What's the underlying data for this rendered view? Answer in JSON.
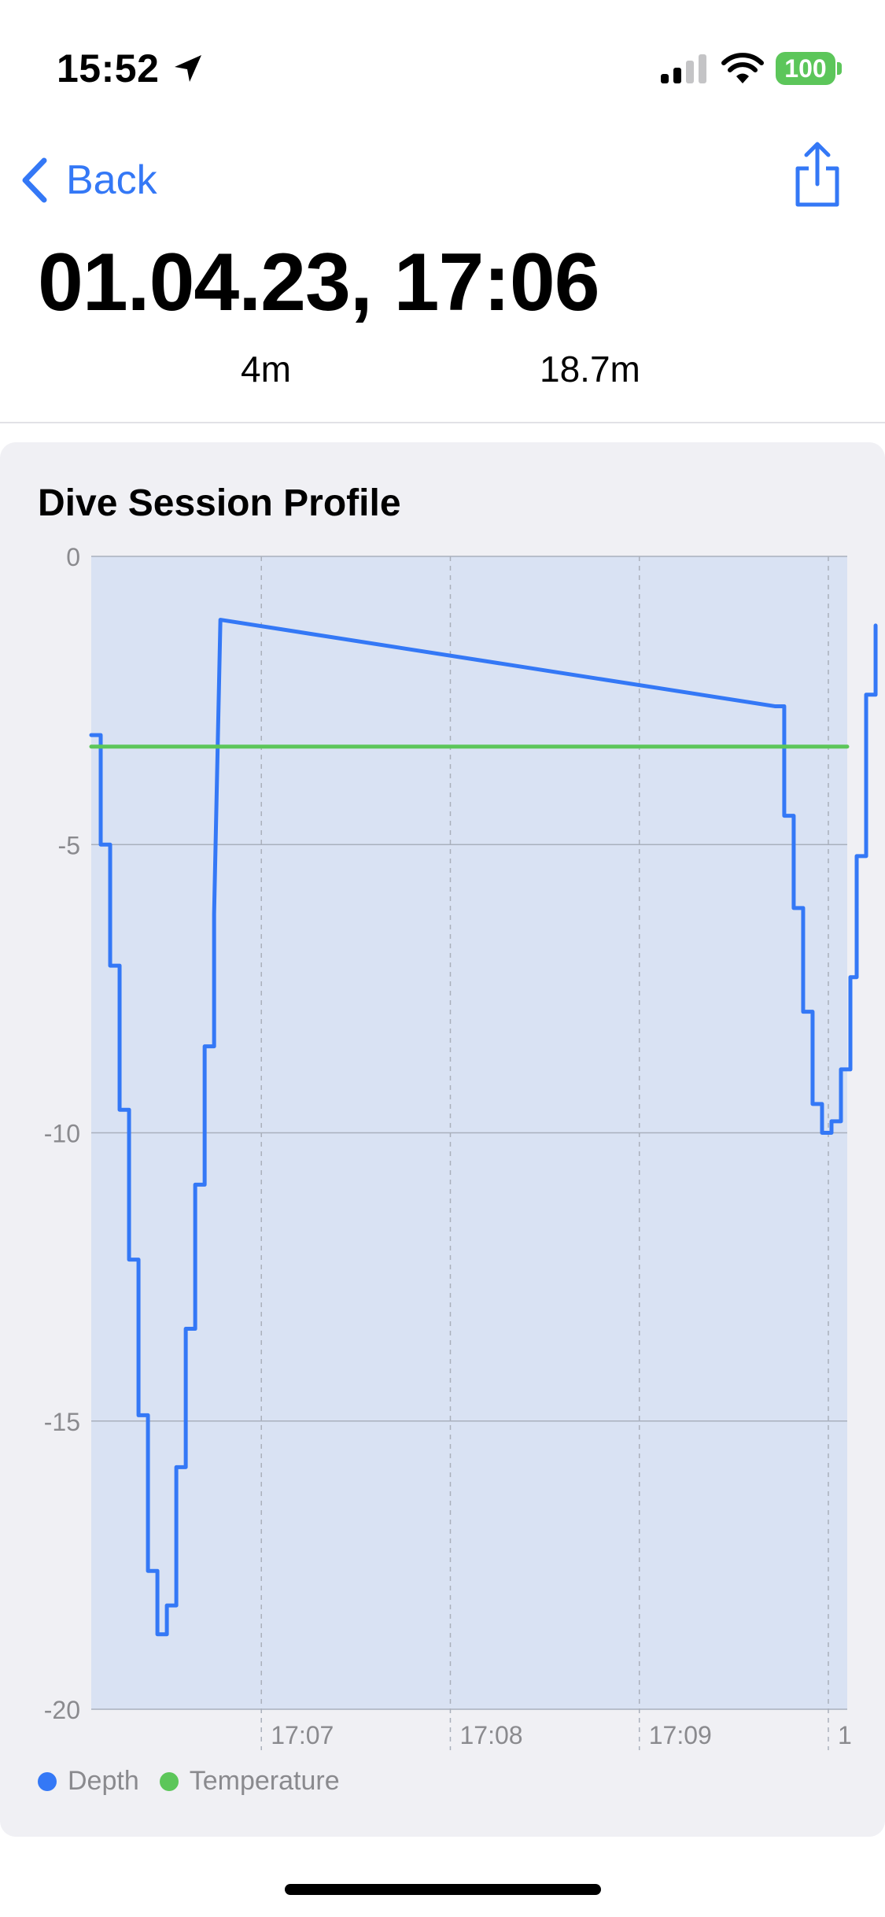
{
  "status_bar": {
    "time": "15:52",
    "battery": "100",
    "icons": [
      "location-arrow-icon",
      "cellular-signal-icon",
      "wifi-icon",
      "battery-icon"
    ],
    "battery_color": "#5cc65a"
  },
  "nav": {
    "back_label": "Back",
    "share_icon": "share-icon",
    "accent_color": "#3478f6"
  },
  "header": {
    "title": "01.04.23, 17:06",
    "duration": "4m",
    "max_depth": "18.7m"
  },
  "card": {
    "title": "Dive Session Profile"
  },
  "legend": {
    "depth_label": "Depth",
    "temperature_label": "Temperature",
    "depth_color": "#3478f6",
    "temperature_color": "#5cc65a"
  },
  "chart_data": {
    "type": "line",
    "title": "Dive Session Profile",
    "ylim": [
      -20,
      0
    ],
    "yticks": [
      "0",
      "-5",
      "-10",
      "-15",
      "-20"
    ],
    "xticks": [
      "17:07",
      "17:08",
      "17:09",
      "1"
    ],
    "xlim": [
      "17:06:06",
      "17:10:06"
    ],
    "grid": true,
    "legend_position": "bottom-left",
    "series": [
      {
        "name": "Depth",
        "color": "#3478f6",
        "step": true,
        "x": [
          "17:06:06",
          "17:06:09",
          "17:06:12",
          "17:06:15",
          "17:06:18",
          "17:06:21",
          "17:06:24",
          "17:06:27",
          "17:06:30",
          "17:06:33",
          "17:06:36",
          "17:06:39",
          "17:06:42",
          "17:06:45",
          "17:06:47",
          "17:09:43",
          "17:09:46",
          "17:09:49",
          "17:09:52",
          "17:09:55",
          "17:09:58",
          "17:10:01",
          "17:10:04",
          "17:10:07",
          "17:10:09",
          "17:10:12",
          "17:10:15"
        ],
        "y": [
          -3.1,
          -5.0,
          -7.1,
          -9.6,
          -12.2,
          -14.9,
          -17.6,
          -18.7,
          -18.2,
          -15.8,
          -13.4,
          -10.9,
          -8.5,
          -6.2,
          -1.1,
          -2.6,
          -4.5,
          -6.1,
          -7.9,
          -9.5,
          -10.0,
          -9.8,
          -8.9,
          -7.3,
          -5.2,
          -2.4,
          -1.2
        ]
      },
      {
        "name": "Temperature",
        "color": "#5cc65a",
        "step": false,
        "x": [
          "17:06:06",
          "17:10:06"
        ],
        "y": [
          -3.3,
          -3.3
        ]
      }
    ]
  }
}
